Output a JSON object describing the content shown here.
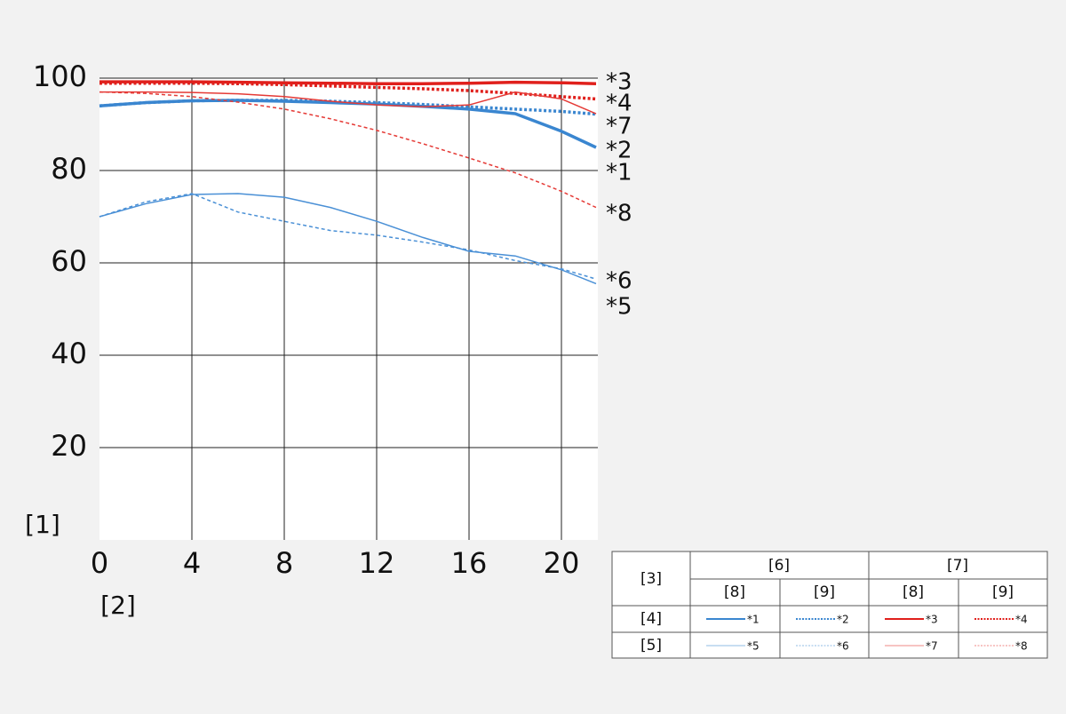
{
  "chart_data": {
    "type": "line",
    "x_label": "[1]",
    "y_label": "[2]",
    "x": [
      0,
      2,
      4,
      6,
      8,
      10,
      12,
      14,
      16,
      18,
      20,
      21.5
    ],
    "xlim": [
      0,
      21.5
    ],
    "xticks": [
      0,
      4,
      8,
      12,
      16,
      20
    ],
    "ylim": [
      0,
      100
    ],
    "yticks": [
      20,
      40,
      60,
      80,
      100
    ],
    "grid": true,
    "series": [
      {
        "name": "*1",
        "color": "#3a86d0",
        "style": "solid",
        "width": 3.5,
        "values": [
          94,
          94.7,
          95.1,
          95.2,
          95,
          94.7,
          94.4,
          93.9,
          93.3,
          92.3,
          88.5,
          85
        ]
      },
      {
        "name": "*2",
        "color": "#3a86d0",
        "style": "dotted",
        "width": 3.5,
        "values": [
          94,
          94.7,
          95.1,
          95.2,
          95.2,
          95,
          94.7,
          94.3,
          93.8,
          93.3,
          92.8,
          92.2
        ]
      },
      {
        "name": "*3",
        "color": "#e0201c",
        "style": "solid",
        "width": 3.5,
        "values": [
          99.2,
          99.2,
          99.2,
          99.1,
          99,
          98.9,
          98.8,
          98.8,
          98.9,
          99.1,
          99,
          98.8
        ]
      },
      {
        "name": "*4",
        "color": "#e0201c",
        "style": "dotted",
        "width": 3.5,
        "values": [
          98.9,
          98.9,
          98.9,
          98.8,
          98.6,
          98.3,
          98,
          97.7,
          97.3,
          96.7,
          96,
          95.5
        ]
      },
      {
        "name": "*5",
        "color": "#4a90d6",
        "style": "solid",
        "width": 1.5,
        "values": [
          70,
          72.8,
          74.8,
          75,
          74.2,
          72,
          69,
          65.5,
          62.5,
          61.5,
          58.5,
          55.5
        ]
      },
      {
        "name": "*6",
        "color": "#4a90d6",
        "style": "dotted",
        "width": 1.5,
        "values": [
          70,
          73.2,
          75,
          71,
          69,
          67,
          66,
          64.5,
          62.8,
          60.5,
          58.7,
          56.5
        ]
      },
      {
        "name": "*7",
        "color": "#e53a36",
        "style": "solid",
        "width": 1.5,
        "values": [
          97,
          97,
          96.9,
          96.6,
          96,
          95,
          94.2,
          93.8,
          94.2,
          97,
          95.5,
          92.3
        ]
      },
      {
        "name": "*8",
        "color": "#e53a36",
        "style": "dotted",
        "width": 1.5,
        "values": [
          97,
          96.7,
          96,
          94.8,
          93.3,
          91.2,
          88.7,
          85.8,
          82.7,
          79.5,
          75.5,
          72
        ]
      }
    ],
    "end_labels": [
      "*3",
      "*4",
      "*7",
      "*2",
      "*1",
      "*8",
      "*6",
      "*5"
    ]
  },
  "legend_table": {
    "corner": "[3]",
    "groups": [
      "[6]",
      "[7]"
    ],
    "subheaders": [
      "[8]",
      "[9]"
    ],
    "rows": [
      "[4]",
      "[5]"
    ]
  }
}
